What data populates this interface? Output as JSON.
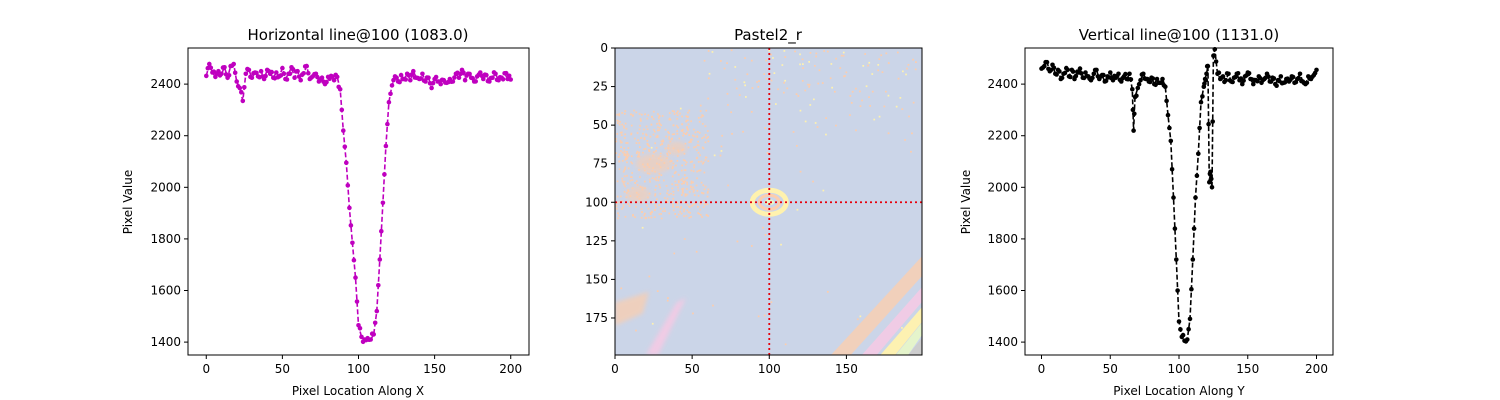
{
  "chart_data": [
    {
      "type": "line",
      "title": "Horizontal line@100 (1083.0)",
      "xlabel": "Pixel Location Along X",
      "ylabel": "Pixel Value",
      "xlim": [
        -12,
        212
      ],
      "ylim": [
        1350,
        2540
      ],
      "xticks": [
        0,
        50,
        100,
        150,
        200
      ],
      "yticks": [
        1400,
        1600,
        1800,
        2000,
        2200,
        2400
      ],
      "grid": false,
      "series": [
        {
          "color": "#bf00bf",
          "linestyle": "dashed",
          "marker": "circle",
          "baseline": 2430,
          "points": [
            [
              0,
              2432
            ],
            [
              2,
              2478
            ],
            [
              4,
              2445
            ],
            [
              6,
              2428
            ],
            [
              8,
              2450
            ],
            [
              10,
              2440
            ],
            [
              12,
              2465
            ],
            [
              14,
              2425
            ],
            [
              16,
              2470
            ],
            [
              18,
              2478
            ],
            [
              20,
              2410
            ],
            [
              22,
              2385
            ],
            [
              24,
              2335
            ],
            [
              26,
              2440
            ],
            [
              28,
              2455
            ],
            [
              30,
              2425
            ],
            [
              32,
              2445
            ],
            [
              34,
              2430
            ],
            [
              36,
              2450
            ],
            [
              38,
              2420
            ],
            [
              40,
              2455
            ],
            [
              42,
              2440
            ],
            [
              44,
              2425
            ],
            [
              46,
              2445
            ],
            [
              48,
              2430
            ],
            [
              50,
              2462
            ],
            [
              52,
              2420
            ],
            [
              54,
              2440
            ],
            [
              56,
              2465
            ],
            [
              58,
              2425
            ],
            [
              60,
              2450
            ],
            [
              62,
              2415
            ],
            [
              64,
              2442
            ],
            [
              66,
              2470
            ],
            [
              68,
              2420
            ],
            [
              70,
              2430
            ],
            [
              72,
              2440
            ],
            [
              74,
              2410
            ],
            [
              76,
              2425
            ],
            [
              78,
              2400
            ],
            [
              80,
              2428
            ],
            [
              82,
              2432
            ],
            [
              84,
              2415
            ],
            [
              86,
              2428
            ],
            [
              88,
              2380
            ],
            [
              90,
              2220
            ],
            [
              92,
              2095
            ],
            [
              94,
              1920
            ],
            [
              96,
              1785
            ],
            [
              98,
              1650
            ],
            [
              100,
              1465
            ],
            [
              102,
              1420
            ],
            [
              104,
              1410
            ],
            [
              106,
              1415
            ],
            [
              108,
              1410
            ],
            [
              110,
              1430
            ],
            [
              112,
              1520
            ],
            [
              114,
              1720
            ],
            [
              116,
              1940
            ],
            [
              118,
              2160
            ],
            [
              120,
              2330
            ],
            [
              122,
              2395
            ],
            [
              124,
              2430
            ],
            [
              126,
              2410
            ],
            [
              128,
              2435
            ],
            [
              130,
              2420
            ],
            [
              132,
              2440
            ],
            [
              134,
              2415
            ],
            [
              136,
              2450
            ],
            [
              138,
              2425
            ],
            [
              140,
              2420
            ],
            [
              142,
              2440
            ],
            [
              144,
              2410
            ],
            [
              146,
              2425
            ],
            [
              148,
              2385
            ],
            [
              150,
              2420
            ],
            [
              152,
              2410
            ],
            [
              154,
              2400
            ],
            [
              156,
              2415
            ],
            [
              158,
              2405
            ],
            [
              160,
              2420
            ],
            [
              162,
              2410
            ],
            [
              164,
              2440
            ],
            [
              166,
              2425
            ],
            [
              168,
              2455
            ],
            [
              170,
              2415
            ],
            [
              172,
              2440
            ],
            [
              174,
              2425
            ],
            [
              176,
              2410
            ],
            [
              178,
              2430
            ],
            [
              180,
              2445
            ],
            [
              182,
              2420
            ],
            [
              184,
              2435
            ],
            [
              186,
              2410
            ],
            [
              188,
              2425
            ],
            [
              190,
              2440
            ],
            [
              192,
              2415
            ],
            [
              194,
              2425
            ],
            [
              196,
              2442
            ],
            [
              198,
              2420
            ],
            [
              200,
              2418
            ]
          ]
        }
      ]
    },
    {
      "type": "heatmap",
      "title": "Pastel2_r",
      "colormap": "Pastel2_r",
      "xlim": [
        0,
        199
      ],
      "ylim": [
        199,
        0
      ],
      "xticks": [
        0,
        50,
        100,
        150
      ],
      "yticks": [
        0,
        25,
        50,
        75,
        100,
        125,
        150,
        175
      ],
      "crosshair": {
        "x": 100,
        "y": 100,
        "color": "#e8000b",
        "linestyle": "dotted"
      },
      "colors": {
        "background": "#cbd5e8",
        "speckle": "#fdcdac",
        "pink": "#f4cae4",
        "yellow": "#fff2ae",
        "green": "#e6f5c9",
        "gray": "#cccccc"
      }
    },
    {
      "type": "line",
      "title": "Vertical line@100 (1131.0)",
      "xlabel": "Pixel Location Along Y",
      "ylabel": "Pixel Value",
      "xlim": [
        -12,
        212
      ],
      "ylim": [
        1350,
        2540
      ],
      "xticks": [
        0,
        50,
        100,
        150,
        200
      ],
      "yticks": [
        1400,
        1600,
        1800,
        2000,
        2200,
        2400
      ],
      "grid": false,
      "series": [
        {
          "color": "#000000",
          "linestyle": "dashed",
          "marker": "circle",
          "baseline": 2430,
          "points": [
            [
              0,
              2460
            ],
            [
              2,
              2470
            ],
            [
              4,
              2485
            ],
            [
              6,
              2450
            ],
            [
              8,
              2475
            ],
            [
              10,
              2440
            ],
            [
              12,
              2455
            ],
            [
              14,
              2420
            ],
            [
              16,
              2440
            ],
            [
              18,
              2462
            ],
            [
              20,
              2430
            ],
            [
              22,
              2455
            ],
            [
              24,
              2420
            ],
            [
              26,
              2448
            ],
            [
              28,
              2460
            ],
            [
              30,
              2425
            ],
            [
              32,
              2445
            ],
            [
              34,
              2430
            ],
            [
              36,
              2415
            ],
            [
              38,
              2440
            ],
            [
              40,
              2455
            ],
            [
              42,
              2420
            ],
            [
              44,
              2435
            ],
            [
              46,
              2410
            ],
            [
              48,
              2430
            ],
            [
              50,
              2445
            ],
            [
              52,
              2415
            ],
            [
              54,
              2425
            ],
            [
              56,
              2440
            ],
            [
              58,
              2410
            ],
            [
              60,
              2430
            ],
            [
              62,
              2420
            ],
            [
              64,
              2440
            ],
            [
              66,
              2380
            ],
            [
              67,
              2220
            ],
            [
              68,
              2350
            ],
            [
              70,
              2385
            ],
            [
              72,
              2415
            ],
            [
              74,
              2440
            ],
            [
              76,
              2420
            ],
            [
              78,
              2410
            ],
            [
              80,
              2425
            ],
            [
              82,
              2400
            ],
            [
              84,
              2420
            ],
            [
              86,
              2405
            ],
            [
              88,
              2420
            ],
            [
              90,
              2390
            ],
            [
              92,
              2280
            ],
            [
              94,
              2180
            ],
            [
              96,
              1960
            ],
            [
              98,
              1720
            ],
            [
              100,
              1480
            ],
            [
              102,
              1420
            ],
            [
              104,
              1405
            ],
            [
              106,
              1410
            ],
            [
              108,
              1490
            ],
            [
              110,
              1720
            ],
            [
              112,
              1960
            ],
            [
              114,
              2130
            ],
            [
              116,
              2330
            ],
            [
              118,
              2390
            ],
            [
              119,
              2420
            ],
            [
              120,
              2440
            ],
            [
              121,
              2470
            ],
            [
              122,
              2020
            ],
            [
              123,
              2060
            ],
            [
              124,
              2000
            ],
            [
              125,
              2510
            ],
            [
              126,
              2535
            ],
            [
              128,
              2440
            ],
            [
              130,
              2420
            ],
            [
              132,
              2430
            ],
            [
              134,
              2415
            ],
            [
              136,
              2440
            ],
            [
              138,
              2410
            ],
            [
              140,
              2425
            ],
            [
              142,
              2440
            ],
            [
              144,
              2415
            ],
            [
              146,
              2400
            ],
            [
              148,
              2430
            ],
            [
              150,
              2445
            ],
            [
              152,
              2420
            ],
            [
              154,
              2400
            ],
            [
              156,
              2415
            ],
            [
              158,
              2430
            ],
            [
              160,
              2405
            ],
            [
              162,
              2420
            ],
            [
              164,
              2440
            ],
            [
              166,
              2410
            ],
            [
              168,
              2425
            ],
            [
              170,
              2400
            ],
            [
              172,
              2415
            ],
            [
              174,
              2430
            ],
            [
              176,
              2405
            ],
            [
              178,
              2420
            ],
            [
              180,
              2410
            ],
            [
              182,
              2430
            ],
            [
              184,
              2405
            ],
            [
              186,
              2420
            ],
            [
              188,
              2440
            ],
            [
              190,
              2410
            ],
            [
              192,
              2400
            ],
            [
              194,
              2430
            ],
            [
              196,
              2420
            ],
            [
              198,
              2435
            ],
            [
              200,
              2455
            ]
          ]
        }
      ]
    }
  ]
}
